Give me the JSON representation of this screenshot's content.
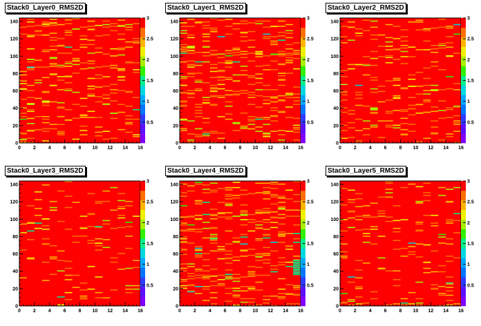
{
  "colors": {
    "background": "#ffffff",
    "frame": "#000000",
    "palette": [
      "#7f00ff",
      "#5a0fff",
      "#2e3bff",
      "#0075ff",
      "#00aaff",
      "#00d8e0",
      "#00f08c",
      "#2ef000",
      "#a6f000",
      "#f0f000",
      "#ffb400",
      "#ff6e00",
      "#ff0000"
    ]
  },
  "chart_data": [
    {
      "type": "heatmap",
      "title": "Stack0_Layer0_RMS2D",
      "xlabel": "",
      "ylabel": "",
      "xlim": [
        0,
        16
      ],
      "ylim": [
        0,
        144
      ],
      "zlim": [
        0,
        3
      ],
      "x_ticks": [
        "0",
        "2",
        "4",
        "6",
        "8",
        "10",
        "12",
        "14",
        "16"
      ],
      "y_ticks": [
        "0",
        "20",
        "40",
        "60",
        "80",
        "100",
        "120",
        "140"
      ],
      "z_ticks": [
        "0.5",
        "1",
        "1.5",
        "2",
        "2.5",
        "3"
      ],
      "bins": {
        "x": 16,
        "y": 144
      },
      "baseline_value": 3.0,
      "cells": [
        {
          "x": 0,
          "y": 62,
          "v": 2.2
        },
        {
          "x": 1,
          "y": 28,
          "v": 2.5
        },
        {
          "x": 1,
          "y": 96,
          "v": 2.0
        },
        {
          "x": 2,
          "y": 15,
          "v": 2.6
        },
        {
          "x": 3,
          "y": 124,
          "v": 2.5
        },
        {
          "x": 4,
          "y": 66,
          "v": 2.1
        },
        {
          "x": 5,
          "y": 40,
          "v": 2.6
        },
        {
          "x": 6,
          "y": 88,
          "v": 2.4
        },
        {
          "x": 7,
          "y": 131,
          "v": 2.0
        },
        {
          "x": 8,
          "y": 110,
          "v": 2.5
        },
        {
          "x": 9,
          "y": 54,
          "v": 2.2
        },
        {
          "x": 10,
          "y": 8,
          "v": 2.6
        },
        {
          "x": 11,
          "y": 76,
          "v": 2.4
        },
        {
          "x": 12,
          "y": 100,
          "v": 2.5
        },
        {
          "x": 13,
          "y": 85,
          "v": 2.1
        },
        {
          "x": 14,
          "y": 23,
          "v": 2.5
        },
        {
          "x": 15,
          "y": 117,
          "v": 2.6
        },
        {
          "x": 3,
          "y": 47,
          "v": 2.3
        },
        {
          "x": 9,
          "y": 140,
          "v": 2.5
        },
        {
          "x": 12,
          "y": 34,
          "v": 1.9
        }
      ],
      "cell_seed": 11,
      "cell_fraction": 0.11
    },
    {
      "type": "heatmap",
      "title": "Stack0_Layer1_RMS2D",
      "xlabel": "",
      "ylabel": "",
      "xlim": [
        0,
        16
      ],
      "ylim": [
        0,
        144
      ],
      "zlim": [
        0,
        3
      ],
      "x_ticks": [
        "0",
        "2",
        "4",
        "6",
        "8",
        "10",
        "12",
        "14",
        "16"
      ],
      "y_ticks": [
        "0",
        "20",
        "40",
        "60",
        "80",
        "100",
        "120",
        "140"
      ],
      "z_ticks": [
        "0.5",
        "1",
        "1.5",
        "2",
        "2.5",
        "3"
      ],
      "bins": {
        "x": 16,
        "y": 144
      },
      "baseline_value": 3.0,
      "cells": [
        {
          "x": 1,
          "y": 110,
          "v": 2.3
        },
        {
          "x": 2,
          "y": 70,
          "v": 2.0
        },
        {
          "x": 4,
          "y": 128,
          "v": 2.5
        },
        {
          "x": 5,
          "y": 30,
          "v": 2.4
        },
        {
          "x": 6,
          "y": 92,
          "v": 2.1
        },
        {
          "x": 8,
          "y": 60,
          "v": 2.6
        },
        {
          "x": 9,
          "y": 16,
          "v": 2.5
        },
        {
          "x": 10,
          "y": 102,
          "v": 2.2
        },
        {
          "x": 11,
          "y": 45,
          "v": 2.5
        },
        {
          "x": 12,
          "y": 134,
          "v": 2.1
        },
        {
          "x": 13,
          "y": 80,
          "v": 2.4
        },
        {
          "x": 15,
          "y": 52,
          "v": 2.6
        }
      ],
      "cell_seed": 23,
      "cell_fraction": 0.14
    },
    {
      "type": "heatmap",
      "title": "Stack0_Layer2_RMS2D",
      "xlabel": "",
      "ylabel": "",
      "xlim": [
        0,
        16
      ],
      "ylim": [
        0,
        144
      ],
      "zlim": [
        0,
        3
      ],
      "x_ticks": [
        "0",
        "2",
        "4",
        "6",
        "8",
        "10",
        "12",
        "14",
        "16"
      ],
      "y_ticks": [
        "0",
        "20",
        "40",
        "60",
        "80",
        "100",
        "120",
        "140"
      ],
      "z_ticks": [
        "0.5",
        "1",
        "1.5",
        "2",
        "2.5",
        "3"
      ],
      "bins": {
        "x": 16,
        "y": 144
      },
      "baseline_value": 3.0,
      "cells": [
        {
          "x": 4,
          "y": 38,
          "v": 1.9
        },
        {
          "x": 4,
          "y": 39,
          "v": 1.9
        },
        {
          "x": 4,
          "y": 40,
          "v": 1.9
        },
        {
          "x": 2,
          "y": 90,
          "v": 2.3
        },
        {
          "x": 7,
          "y": 120,
          "v": 2.5
        },
        {
          "x": 9,
          "y": 65,
          "v": 2.1
        },
        {
          "x": 12,
          "y": 18,
          "v": 2.6
        },
        {
          "x": 14,
          "y": 100,
          "v": 2.3
        },
        {
          "x": 10,
          "y": 44,
          "v": 2.4
        },
        {
          "x": 1,
          "y": 133,
          "v": 2.5
        }
      ],
      "cell_seed": 37,
      "cell_fraction": 0.09
    },
    {
      "type": "heatmap",
      "title": "Stack0_Layer3_RMS2D",
      "xlabel": "",
      "ylabel": "",
      "xlim": [
        0,
        16
      ],
      "ylim": [
        0,
        144
      ],
      "zlim": [
        0,
        3
      ],
      "x_ticks": [
        "0",
        "2",
        "4",
        "6",
        "8",
        "10",
        "12",
        "14",
        "16"
      ],
      "y_ticks": [
        "0",
        "20",
        "40",
        "60",
        "80",
        "100",
        "120",
        "140"
      ],
      "z_ticks": [
        "0.5",
        "1",
        "1.5",
        "2",
        "2.5",
        "3"
      ],
      "bins": {
        "x": 16,
        "y": 144
      },
      "baseline_value": 3.0,
      "cells": [
        {
          "x": 3,
          "y": 100,
          "v": 2.3
        },
        {
          "x": 6,
          "y": 30,
          "v": 2.5
        },
        {
          "x": 10,
          "y": 72,
          "v": 2.2
        },
        {
          "x": 13,
          "y": 112,
          "v": 2.4
        },
        {
          "x": 8,
          "y": 8,
          "v": 2.6
        },
        {
          "x": 1,
          "y": 55,
          "v": 2.5
        }
      ],
      "cell_seed": 41,
      "cell_fraction": 0.05
    },
    {
      "type": "heatmap",
      "title": "Stack0_Layer4_RMS2D",
      "xlabel": "",
      "ylabel": "",
      "xlim": [
        0,
        16
      ],
      "ylim": [
        0,
        144
      ],
      "zlim": [
        0,
        3
      ],
      "x_ticks": [
        "0",
        "2",
        "4",
        "6",
        "8",
        "10",
        "12",
        "14",
        "16"
      ],
      "y_ticks": [
        "0",
        "20",
        "40",
        "60",
        "80",
        "100",
        "120",
        "140"
      ],
      "z_ticks": [
        "0.5",
        "1",
        "1.5",
        "2",
        "2.5",
        "3"
      ],
      "bins": {
        "x": 16,
        "y": 144
      },
      "baseline_value": 3.0,
      "cells": [
        {
          "x": 15,
          "y": 36,
          "v": 1.6
        },
        {
          "x": 15,
          "y": 38,
          "v": 1.6
        },
        {
          "x": 15,
          "y": 40,
          "v": 1.6
        },
        {
          "x": 15,
          "y": 42,
          "v": 1.6
        },
        {
          "x": 15,
          "y": 44,
          "v": 1.6
        },
        {
          "x": 15,
          "y": 46,
          "v": 1.6
        },
        {
          "x": 15,
          "y": 48,
          "v": 1.6
        },
        {
          "x": 15,
          "y": 50,
          "v": 1.6
        },
        {
          "x": 15,
          "y": 52,
          "v": 1.6
        },
        {
          "x": 6,
          "y": 36,
          "v": 1.5
        },
        {
          "x": 2,
          "y": 64,
          "v": 2.1
        },
        {
          "x": 9,
          "y": 20,
          "v": 2.3
        },
        {
          "x": 12,
          "y": 96,
          "v": 2.5
        }
      ],
      "cell_seed": 53,
      "cell_fraction": 0.15
    },
    {
      "type": "heatmap",
      "title": "Stack0_Layer5_RMS2D",
      "xlabel": "",
      "ylabel": "",
      "xlim": [
        0,
        16
      ],
      "ylim": [
        0,
        144
      ],
      "zlim": [
        0,
        3
      ],
      "x_ticks": [
        "0",
        "2",
        "4",
        "6",
        "8",
        "10",
        "12",
        "14",
        "16"
      ],
      "y_ticks": [
        "0",
        "20",
        "40",
        "60",
        "80",
        "100",
        "120",
        "140"
      ],
      "z_ticks": [
        "0.5",
        "1",
        "1.5",
        "2",
        "2.5",
        "3"
      ],
      "bins": {
        "x": 16,
        "y": 144
      },
      "baseline_value": 3.0,
      "cells": [
        {
          "x": 2,
          "y": 20,
          "v": 2.4
        },
        {
          "x": 5,
          "y": 80,
          "v": 2.5
        },
        {
          "x": 11,
          "y": 50,
          "v": 2.3
        },
        {
          "x": 14,
          "y": 120,
          "v": 2.5
        }
      ],
      "cell_seed": 67,
      "cell_fraction": 0.07
    }
  ]
}
